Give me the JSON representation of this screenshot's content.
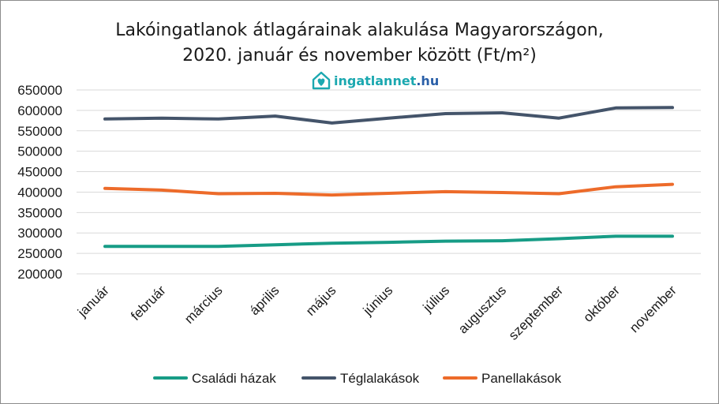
{
  "header": {
    "title_line1": "Lakóingatlanok átlagárainak alakulása Magyarországon,",
    "title_line2": "2020. január és november között (Ft/m²)"
  },
  "logo": {
    "name": "ingatlannet",
    "tld": ".hu",
    "icon": "house-heart-icon",
    "color": "#1ba8b0",
    "tld_color": "#2a5fa8"
  },
  "chart_data": {
    "type": "line",
    "title": "Lakóingatlanok átlagárainak alakulása Magyarországon, 2020. január és november között (Ft/m²)",
    "categories": [
      "január",
      "február",
      "március",
      "április",
      "május",
      "június",
      "július",
      "augusztus",
      "szeptember",
      "október",
      "november"
    ],
    "ylim": [
      200000,
      650000
    ],
    "yticks": [
      "650000",
      "600000",
      "550000",
      "500000",
      "450000",
      "400000",
      "350000",
      "300000",
      "250000",
      "200000"
    ],
    "grid": true,
    "legend_position": "bottom",
    "series": [
      {
        "name": "Családi házak",
        "color": "#179c86",
        "values": [
          267000,
          267000,
          267000,
          271000,
          275000,
          277000,
          280000,
          281000,
          286000,
          292000,
          292000
        ]
      },
      {
        "name": "Téglalakások",
        "color": "#44546a",
        "values": [
          579000,
          581000,
          579000,
          586000,
          569000,
          581000,
          592000,
          594000,
          581000,
          606000,
          607000
        ]
      },
      {
        "name": "Panellakások",
        "color": "#ed6b2a",
        "values": [
          409000,
          405000,
          396000,
          397000,
          393000,
          397000,
          401000,
          399000,
          396000,
          413000,
          419000
        ]
      }
    ]
  }
}
